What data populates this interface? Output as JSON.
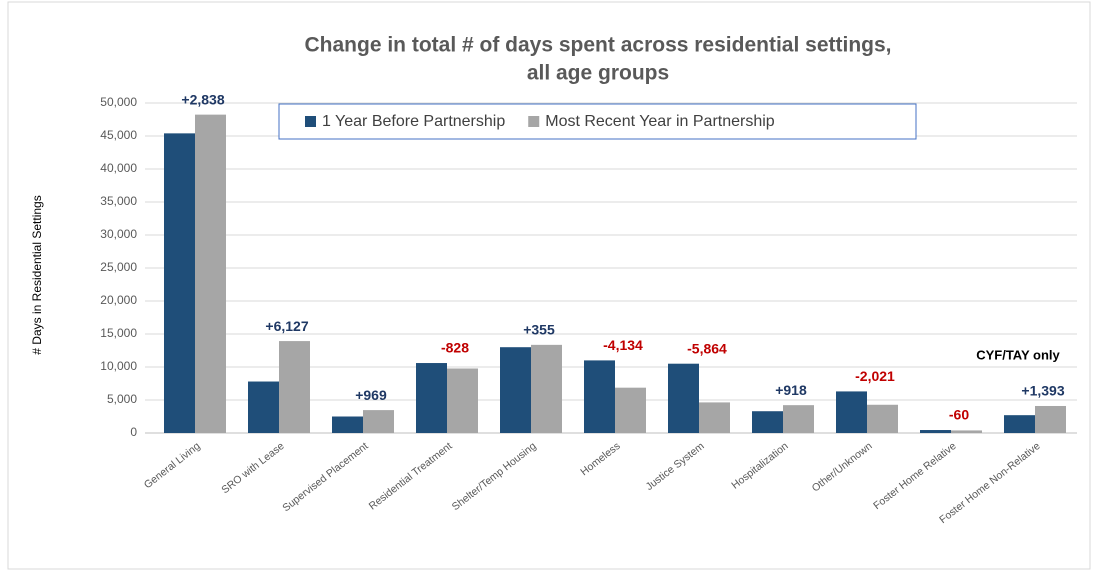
{
  "chart_data": {
    "type": "bar",
    "title": [
      "Change in total # of days spent across residential settings,",
      "all age groups"
    ],
    "ylabel": "# Days in Residential Settings",
    "categories": [
      "General Living",
      "SRO with Lease",
      "Supervised Placement",
      "Residential Treatment",
      "Shelter/Temp Housing",
      "Homeless",
      "Justice System",
      "Hospitalization",
      "Other/Unknown",
      "Foster Home Relative",
      "Foster Home Non-Relative"
    ],
    "series": [
      {
        "name": "1 Year Before Partnership",
        "color": "#1f4e79",
        "values": [
          45400,
          7800,
          2500,
          10600,
          13000,
          11000,
          10500,
          3300,
          6300,
          450,
          2700
        ]
      },
      {
        "name": "Most Recent Year in Partnership",
        "color": "#a6a6a6",
        "values": [
          48238,
          13927,
          3469,
          9772,
          13355,
          6866,
          4636,
          4218,
          4279,
          390,
          4093
        ]
      }
    ],
    "annotations": [
      {
        "text": "+2,838",
        "color": "#1f3864"
      },
      {
        "text": "+6,127",
        "color": "#1f3864"
      },
      {
        "text": "+969",
        "color": "#1f3864"
      },
      {
        "text": "-828",
        "color": "#c00000"
      },
      {
        "text": "+355",
        "color": "#1f3864"
      },
      {
        "text": "-4,134",
        "color": "#c00000"
      },
      {
        "text": "-5,864",
        "color": "#c00000"
      },
      {
        "text": "+918",
        "color": "#1f3864"
      },
      {
        "text": "-2,021",
        "color": "#c00000"
      },
      {
        "text": "-60",
        "color": "#c00000"
      },
      {
        "text": "+1,393",
        "color": "#1f3864"
      }
    ],
    "note": "CYF/TAY only",
    "ylim": [
      0,
      50000
    ],
    "yticks": [
      0,
      {
        "value": 5000,
        "label": "5,000"
      },
      {
        "value": 10000,
        "label": "10,000"
      },
      {
        "value": 15000,
        "label": "15,000"
      },
      {
        "value": 20000,
        "label": "20,000"
      },
      {
        "value": 25000,
        "label": "25,000"
      },
      {
        "value": 30000,
        "label": "30,000"
      },
      {
        "value": 35000,
        "label": "35,000"
      },
      {
        "value": 40000,
        "label": "40,000"
      },
      {
        "value": 45000,
        "label": "45,000"
      },
      {
        "value": 50000,
        "label": "50,000"
      }
    ],
    "grid": true,
    "legend": "top"
  }
}
